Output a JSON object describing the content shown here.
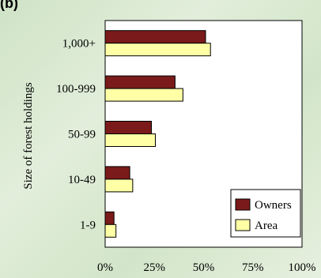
{
  "panel_tag": "(b)",
  "chart_data": {
    "type": "bar",
    "orientation": "horizontal",
    "categories": [
      "1,000+",
      "100-999",
      "50-99",
      "10-49",
      "1-9"
    ],
    "series": [
      {
        "name": "Owners",
        "color": "#7b1a1a",
        "values": [
          51,
          35.5,
          23.5,
          12.5,
          4.5
        ]
      },
      {
        "name": "Area",
        "color": "#ffffa6",
        "values": [
          53.5,
          39.5,
          25.5,
          14,
          5.5
        ]
      }
    ],
    "xlabel": "",
    "ylabel": "Size of forest holdings",
    "xlim": [
      0,
      100
    ],
    "xticks": [
      "0%",
      "25%",
      "50%",
      "75%",
      "100%"
    ],
    "grid": false,
    "legend_position": "bottom-right"
  }
}
